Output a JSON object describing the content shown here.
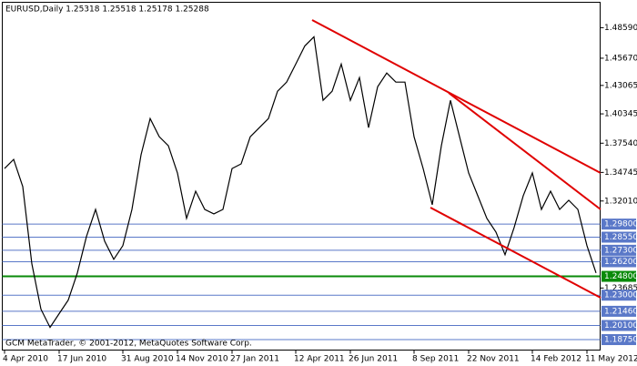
{
  "chart_data": {
    "type": "line",
    "title": "EURUSD,Daily  1.25318 1.25518 1.25178 1.25288",
    "footer": "GCM MetaTrader, © 2001-2012, MetaQuotes Software Corp.",
    "color": "#000000",
    "categories": [
      "4 Apr 2010",
      null,
      null,
      null,
      null,
      null,
      "17 Jun 2010",
      null,
      null,
      null,
      null,
      null,
      null,
      "31 Aug 2010",
      null,
      null,
      null,
      null,
      null,
      "14 Nov 2010",
      null,
      null,
      null,
      null,
      null,
      "27 Jan 2011",
      null,
      null,
      null,
      null,
      null,
      null,
      "12 Apr 2011",
      null,
      null,
      null,
      null,
      null,
      "26 Jun 2011",
      null,
      null,
      null,
      null,
      null,
      null,
      "8 Sep 2011",
      null,
      null,
      null,
      null,
      null,
      "22 Nov 2011",
      null,
      null,
      null,
      null,
      null,
      null,
      "14 Feb 2012",
      null,
      null,
      null,
      null,
      null,
      "11 May 2012",
      null
    ],
    "values": [
      1.3512,
      1.3599,
      1.3339,
      1.26,
      1.2166,
      1.1992,
      1.2123,
      1.2253,
      1.2513,
      1.2861,
      1.3121,
      1.2817,
      1.2643,
      1.2774,
      1.3121,
      1.3643,
      1.399,
      1.3816,
      1.3729,
      1.3469,
      1.3035,
      1.3295,
      1.3121,
      1.3078,
      1.3121,
      1.3512,
      1.3556,
      1.3816,
      1.3903,
      1.399,
      1.4251,
      1.4338,
      1.4511,
      1.4685,
      1.4772,
      1.4164,
      1.4251,
      1.4511,
      1.4164,
      1.4381,
      1.3903,
      1.4294,
      1.4425,
      1.4338,
      1.4338,
      1.3816,
      1.3512,
      1.3165,
      1.3729,
      1.4164,
      1.3816,
      1.3469,
      1.3252,
      1.3035,
      1.2904,
      1.2687,
      1.2948,
      1.3252,
      1.3469,
      1.3121,
      1.3295,
      1.3121,
      1.3208,
      1.3121,
      1.2774,
      1.2513
    ],
    "ylim": [
      1.1775,
      1.5102
    ],
    "yticks": [
      {
        "value": 1.4859,
        "label": "1.48590"
      },
      {
        "value": 1.4567,
        "label": "1.45670"
      },
      {
        "value": 1.43065,
        "label": "1.43065"
      },
      {
        "value": 1.40345,
        "label": "1.40345"
      },
      {
        "value": 1.3754,
        "label": "1.37540"
      },
      {
        "value": 1.34745,
        "label": "1.34745"
      },
      {
        "value": 1.3201,
        "label": "1.32010"
      },
      {
        "value": 1.23685,
        "label": "1.23685"
      }
    ],
    "levels": [
      {
        "value": 1.298,
        "label": "1.29800",
        "color": "#5a78c8"
      },
      {
        "value": 1.2855,
        "label": "1.28550",
        "color": "#5a78c8"
      },
      {
        "value": 1.273,
        "label": "1.27300",
        "color": "#5a78c8"
      },
      {
        "value": 1.262,
        "label": "1.26200",
        "color": "#5a78c8"
      },
      {
        "value": 1.248,
        "label": "1.24800",
        "color": "#0a8a0a"
      },
      {
        "value": 1.23,
        "label": "1.23000",
        "color": "#5a78c8"
      },
      {
        "value": 1.2146,
        "label": "1.21460",
        "color": "#5a78c8"
      },
      {
        "value": 1.201,
        "label": "1.20100",
        "color": "#5a78c8"
      },
      {
        "value": 1.1875,
        "label": "1.18750",
        "color": "#5a78c8"
      }
    ]
  }
}
